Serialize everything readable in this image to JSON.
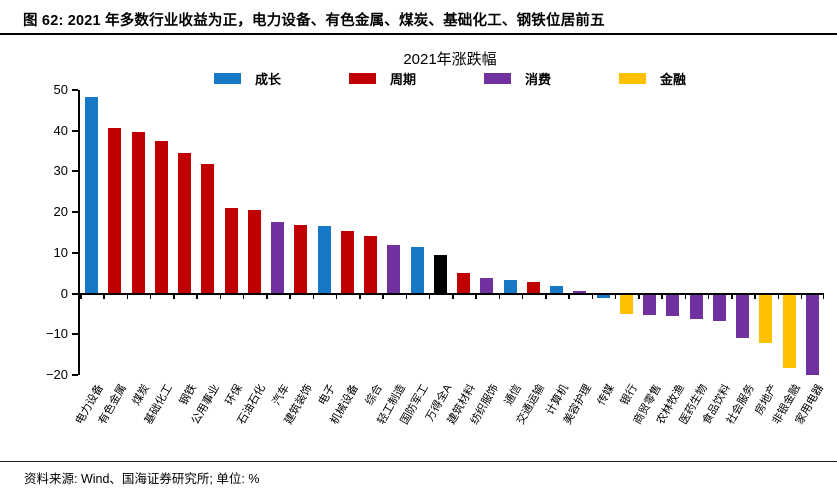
{
  "header": {
    "title": "图 62:  2021 年多数行业收益为正，电力设备、有色金属、煤炭、基础化工、钢铁位居前五"
  },
  "footer": {
    "source": "资料来源: Wind、国海证券研究所; 单位: %"
  },
  "chart_data": {
    "type": "bar",
    "title": "2021年涨跌幅",
    "unit": "%",
    "ylim": [
      -20,
      50
    ],
    "yticks": [
      50,
      40,
      30,
      20,
      10,
      0,
      -10,
      -20
    ],
    "grid": false,
    "legend_position": "top-center",
    "legend": [
      {
        "label": "成长",
        "color": "#1679C8"
      },
      {
        "label": "周期",
        "color": "#C00000"
      },
      {
        "label": "消费",
        "color": "#7030A0"
      },
      {
        "label": "金融",
        "color": "#FFC000"
      }
    ],
    "sector_colors": {
      "成长": "#1679C8",
      "周期": "#C00000",
      "消费": "#7030A0",
      "金融": "#FFC000",
      "基准": "#000000"
    },
    "bars": [
      {
        "category": "电力设备",
        "sector": "成长",
        "value": 48.0
      },
      {
        "category": "有色金属",
        "sector": "周期",
        "value": 40.5
      },
      {
        "category": "煤炭",
        "sector": "周期",
        "value": 39.5
      },
      {
        "category": "基础化工",
        "sector": "周期",
        "value": 37.2
      },
      {
        "category": "钢铁",
        "sector": "周期",
        "value": 34.2
      },
      {
        "category": "公用事业",
        "sector": "周期",
        "value": 31.5
      },
      {
        "category": "环保",
        "sector": "周期",
        "value": 20.8
      },
      {
        "category": "石油石化",
        "sector": "周期",
        "value": 20.4
      },
      {
        "category": "汽车",
        "sector": "消费",
        "value": 17.4
      },
      {
        "category": "建筑装饰",
        "sector": "周期",
        "value": 16.7
      },
      {
        "category": "电子",
        "sector": "成长",
        "value": 16.3
      },
      {
        "category": "机械设备",
        "sector": "周期",
        "value": 15.1
      },
      {
        "category": "综合",
        "sector": "周期",
        "value": 13.9
      },
      {
        "category": "轻工制造",
        "sector": "消费",
        "value": 11.7
      },
      {
        "category": "国防军工",
        "sector": "成长",
        "value": 11.2
      },
      {
        "category": "万得全A",
        "sector": "基准",
        "value": 9.2
      },
      {
        "category": "建筑材料",
        "sector": "周期",
        "value": 4.7
      },
      {
        "category": "纺织服饰",
        "sector": "消费",
        "value": 3.5
      },
      {
        "category": "通信",
        "sector": "成长",
        "value": 3.2
      },
      {
        "category": "交通运输",
        "sector": "周期",
        "value": 2.7
      },
      {
        "category": "计算机",
        "sector": "成长",
        "value": 1.7
      },
      {
        "category": "美容护理",
        "sector": "消费",
        "value": 0.4
      },
      {
        "category": "传媒",
        "sector": "成长",
        "value": -0.9
      },
      {
        "category": "银行",
        "sector": "金融",
        "value": -4.8
      },
      {
        "category": "商贸零售",
        "sector": "消费",
        "value": -5.1
      },
      {
        "category": "农林牧渔",
        "sector": "消费",
        "value": -5.3
      },
      {
        "category": "医药生物",
        "sector": "消费",
        "value": -5.9
      },
      {
        "category": "食品饮料",
        "sector": "消费",
        "value": -6.5
      },
      {
        "category": "社会服务",
        "sector": "消费",
        "value": -10.6
      },
      {
        "category": "房地产",
        "sector": "金融",
        "value": -12.0
      },
      {
        "category": "非银金融",
        "sector": "金融",
        "value": -18.0
      },
      {
        "category": "家用电器",
        "sector": "消费",
        "value": -19.7
      }
    ]
  }
}
